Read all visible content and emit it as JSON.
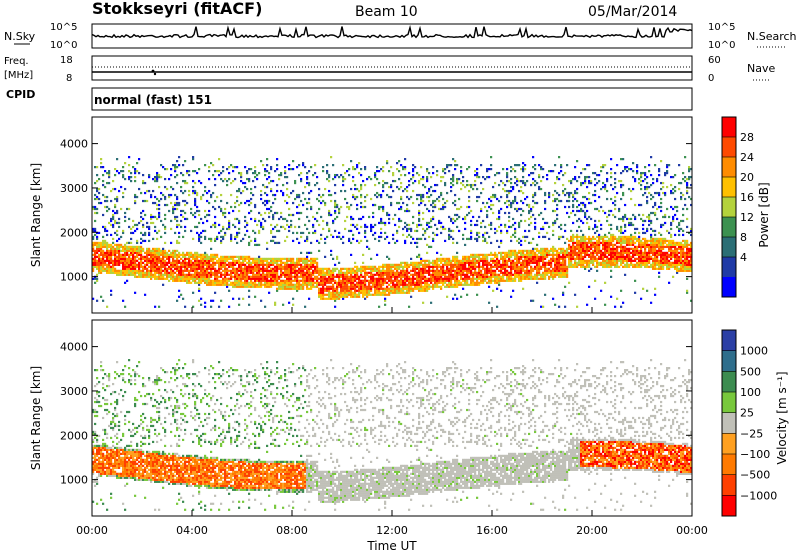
{
  "header": {
    "radar": "Stokkseyri (fitACF)",
    "beam": "Beam 10",
    "date": "05/Mar/2014"
  },
  "noise_panel": {
    "left_label": "N.Sky",
    "right_label": "N.Search",
    "left_ticks": [
      "10^5",
      "10^0"
    ],
    "right_ticks": [
      "10^5",
      "10^0"
    ]
  },
  "freq_panel": {
    "left_label_1": "Freq.",
    "left_label_2": "[MHz]",
    "left_ticks": [
      "18",
      "8"
    ],
    "right_label": "Nave",
    "right_ticks": [
      "60",
      "0"
    ]
  },
  "cpid": {
    "label": "CPID",
    "value": "normal (fast) 151"
  },
  "x_axis": {
    "label": "Time UT",
    "ticks": [
      "00:00",
      "04:00",
      "08:00",
      "12:00",
      "16:00",
      "20:00",
      "00:00"
    ]
  },
  "chart_data": [
    {
      "type": "heatmap",
      "name": "power",
      "ylabel": "Slant Range [km]",
      "yticks": [
        1000,
        2000,
        3000,
        4000
      ],
      "ylim": [
        180,
        4600
      ],
      "xlim_hours": [
        0,
        24
      ],
      "colorbar": {
        "label": "Power [dB]",
        "ticks": [
          "28",
          "24",
          "20",
          "16",
          "12",
          "8",
          "4"
        ],
        "colors": [
          "#ff0000",
          "#ff4a00",
          "#ff8c00",
          "#ffc000",
          "#b4d23c",
          "#3c9150",
          "#2b6e75",
          "#1f3aa6",
          "#0000ff"
        ]
      }
    },
    {
      "type": "heatmap",
      "name": "velocity",
      "ylabel": "Slant Range [km]",
      "yticks": [
        1000,
        2000,
        3000,
        4000
      ],
      "ylim": [
        180,
        4600
      ],
      "xlim_hours": [
        0,
        24
      ],
      "colorbar": {
        "label": "Velocity [m s⁻¹]",
        "ticks": [
          "1000",
          "500",
          "100",
          "25",
          "−25",
          "−100",
          "−500",
          "−1000"
        ],
        "colors": [
          "#2b3fa5",
          "#2f6e8c",
          "#3c8c50",
          "#78c83c",
          "#c0c0b8",
          "#ffa020",
          "#ff7a00",
          "#ff4000",
          "#ff0000"
        ]
      }
    }
  ]
}
